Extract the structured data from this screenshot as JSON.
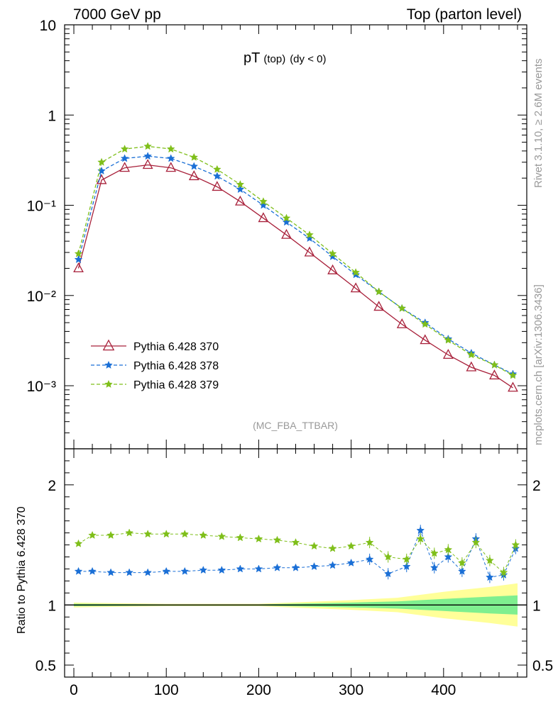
{
  "header": {
    "left": "7000 GeV pp",
    "right": "Top (parton level)"
  },
  "side_labels": {
    "rivet": "Rivet 3.1.10, ≥ 2.6M events",
    "mcplots": "mcplots.cern.ch [arXiv:1306.3436]"
  },
  "analysis_tag": "(MC_FBA_TTBAR)",
  "colors": {
    "series_370": "#a8203a",
    "series_378": "#1a6fd6",
    "series_379": "#7fbf1a",
    "band_inner": "#7fef8f",
    "band_outer": "#ffff99"
  },
  "chart_data": [
    {
      "type": "line",
      "panel": "main",
      "title": "pT",
      "title_sub": "(top)",
      "title_cut": "(dy < 0)",
      "xlim": [
        -10,
        490
      ],
      "ylim": [
        0.0002,
        10
      ],
      "yscale": "log",
      "ytick_labels": {
        "10": "10",
        "1": "1",
        "0.1": "10⁻¹",
        "0.01": "10⁻²",
        "0.001": "10⁻³"
      },
      "legend_position": "lower-left",
      "series": [
        {
          "name": "Pythia 6.428 370",
          "marker": "open-triangle",
          "line": "solid",
          "x": [
            5,
            30,
            55,
            80,
            105,
            130,
            155,
            180,
            205,
            230,
            255,
            280,
            305,
            330,
            355,
            380,
            405,
            430,
            455,
            475
          ],
          "values": [
            0.02,
            0.19,
            0.26,
            0.28,
            0.26,
            0.21,
            0.16,
            0.11,
            0.072,
            0.047,
            0.03,
            0.019,
            0.012,
            0.0075,
            0.0048,
            0.0032,
            0.0022,
            0.0016,
            0.0013,
            0.00095
          ]
        },
        {
          "name": "Pythia 6.428 378",
          "marker": "star",
          "line": "dashed",
          "x": [
            5,
            30,
            55,
            80,
            105,
            130,
            155,
            180,
            205,
            230,
            255,
            280,
            305,
            330,
            355,
            380,
            405,
            430,
            455,
            475
          ],
          "values": [
            0.025,
            0.24,
            0.33,
            0.35,
            0.33,
            0.27,
            0.21,
            0.15,
            0.1,
            0.065,
            0.043,
            0.027,
            0.017,
            0.011,
            0.0072,
            0.005,
            0.0033,
            0.0023,
            0.0017,
            0.00135
          ]
        },
        {
          "name": "Pythia 6.428 379",
          "marker": "star",
          "line": "dashed",
          "x": [
            5,
            30,
            55,
            80,
            105,
            130,
            155,
            180,
            205,
            230,
            255,
            280,
            305,
            330,
            355,
            380,
            405,
            430,
            455,
            475
          ],
          "values": [
            0.029,
            0.3,
            0.42,
            0.45,
            0.42,
            0.34,
            0.25,
            0.17,
            0.11,
            0.072,
            0.047,
            0.029,
            0.018,
            0.011,
            0.0072,
            0.0048,
            0.0032,
            0.0022,
            0.0017,
            0.0013
          ]
        }
      ]
    },
    {
      "type": "line",
      "panel": "ratio",
      "ylabel": "Ratio to Pythia 6.428 370",
      "xlim": [
        -10,
        490
      ],
      "ylim": [
        0.4,
        2.3
      ],
      "yticks": [
        0.5,
        1,
        2
      ],
      "ytick_labels": [
        "0.5",
        "1",
        "2"
      ],
      "xticks": [
        0,
        100,
        200,
        300,
        400
      ],
      "xtick_labels": [
        "0",
        "100",
        "200",
        "300",
        "400"
      ],
      "reference": 1.0,
      "band": {
        "x": [
          0,
          100,
          200,
          300,
          350,
          400,
          450,
          480
        ],
        "inner_half_width": [
          0.01,
          0.005,
          0.005,
          0.02,
          0.03,
          0.05,
          0.07,
          0.08
        ],
        "outer_half_width": [
          0.02,
          0.01,
          0.01,
          0.04,
          0.06,
          0.11,
          0.15,
          0.18
        ]
      },
      "series": [
        {
          "name": "Pythia 6.428 378",
          "marker": "star",
          "x": [
            5,
            20,
            40,
            60,
            80,
            100,
            120,
            140,
            160,
            180,
            200,
            220,
            240,
            260,
            280,
            300,
            320,
            340,
            360,
            375,
            390,
            405,
            420,
            435,
            450,
            465,
            478
          ],
          "values": [
            1.28,
            1.28,
            1.27,
            1.27,
            1.27,
            1.28,
            1.28,
            1.29,
            1.29,
            1.3,
            1.3,
            1.31,
            1.31,
            1.32,
            1.33,
            1.35,
            1.38,
            1.26,
            1.32,
            1.62,
            1.31,
            1.4,
            1.28,
            1.55,
            1.23,
            1.25,
            1.47
          ]
        },
        {
          "name": "Pythia 6.428 379",
          "marker": "star",
          "x": [
            5,
            20,
            40,
            60,
            80,
            100,
            120,
            140,
            160,
            180,
            200,
            220,
            240,
            260,
            280,
            300,
            320,
            340,
            360,
            375,
            390,
            405,
            420,
            435,
            450,
            465,
            478
          ],
          "values": [
            1.51,
            1.58,
            1.58,
            1.6,
            1.59,
            1.59,
            1.59,
            1.58,
            1.57,
            1.56,
            1.55,
            1.54,
            1.52,
            1.49,
            1.47,
            1.49,
            1.52,
            1.4,
            1.38,
            1.55,
            1.43,
            1.46,
            1.35,
            1.52,
            1.37,
            1.27,
            1.5
          ]
        }
      ]
    }
  ]
}
